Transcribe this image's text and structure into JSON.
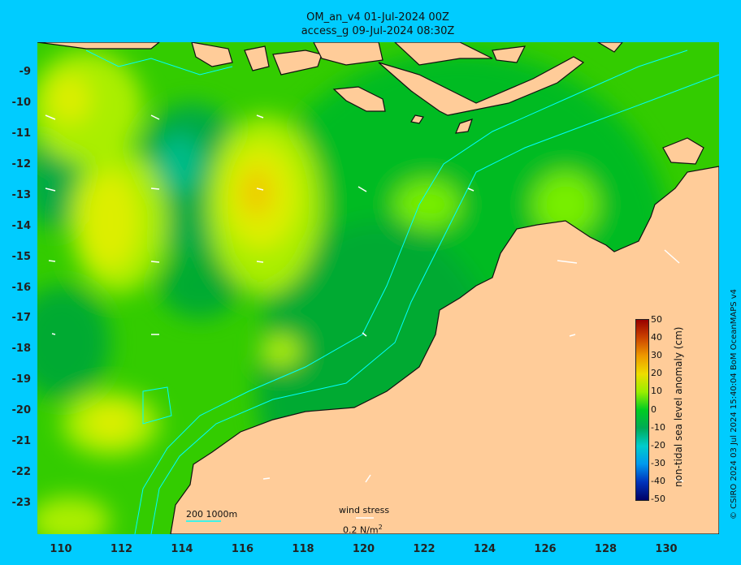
{
  "title": {
    "line1": "OM_an_v4  01-Jul-2024 00Z",
    "line2": "access_g 09-Jul-2024 08:30Z"
  },
  "axes": {
    "lat_ticks": [
      "-9",
      "-10",
      "-11",
      "-12",
      "-13",
      "-14",
      "-15",
      "-16",
      "-17",
      "-18",
      "-19",
      "-20",
      "-21",
      "-22",
      "-23"
    ],
    "lon_ticks": [
      "110",
      "112",
      "114",
      "116",
      "118",
      "120",
      "122",
      "124",
      "126",
      "128",
      "130"
    ]
  },
  "colorbar": {
    "label": "non-tidal sea level anomaly (cm)",
    "ticks": [
      "50",
      "40",
      "30",
      "20",
      "10",
      "0",
      "-10",
      "-20",
      "-30",
      "-40",
      "-50"
    ],
    "range": [
      -50,
      50
    ]
  },
  "bathymetry_legend": {
    "label": "200  1000m",
    "color": "#00ffff"
  },
  "wind_legend": {
    "label": "wind stress",
    "unit": "0.2 N/m",
    "unit_sup": "2"
  },
  "copyright": "© CSIRO 2024   03 Jul 2024 15:40:04 BoM OceanMAPS v4",
  "colors": {
    "background": "#00ccff",
    "land": "#ffcc99",
    "contour": "#00ffff"
  }
}
